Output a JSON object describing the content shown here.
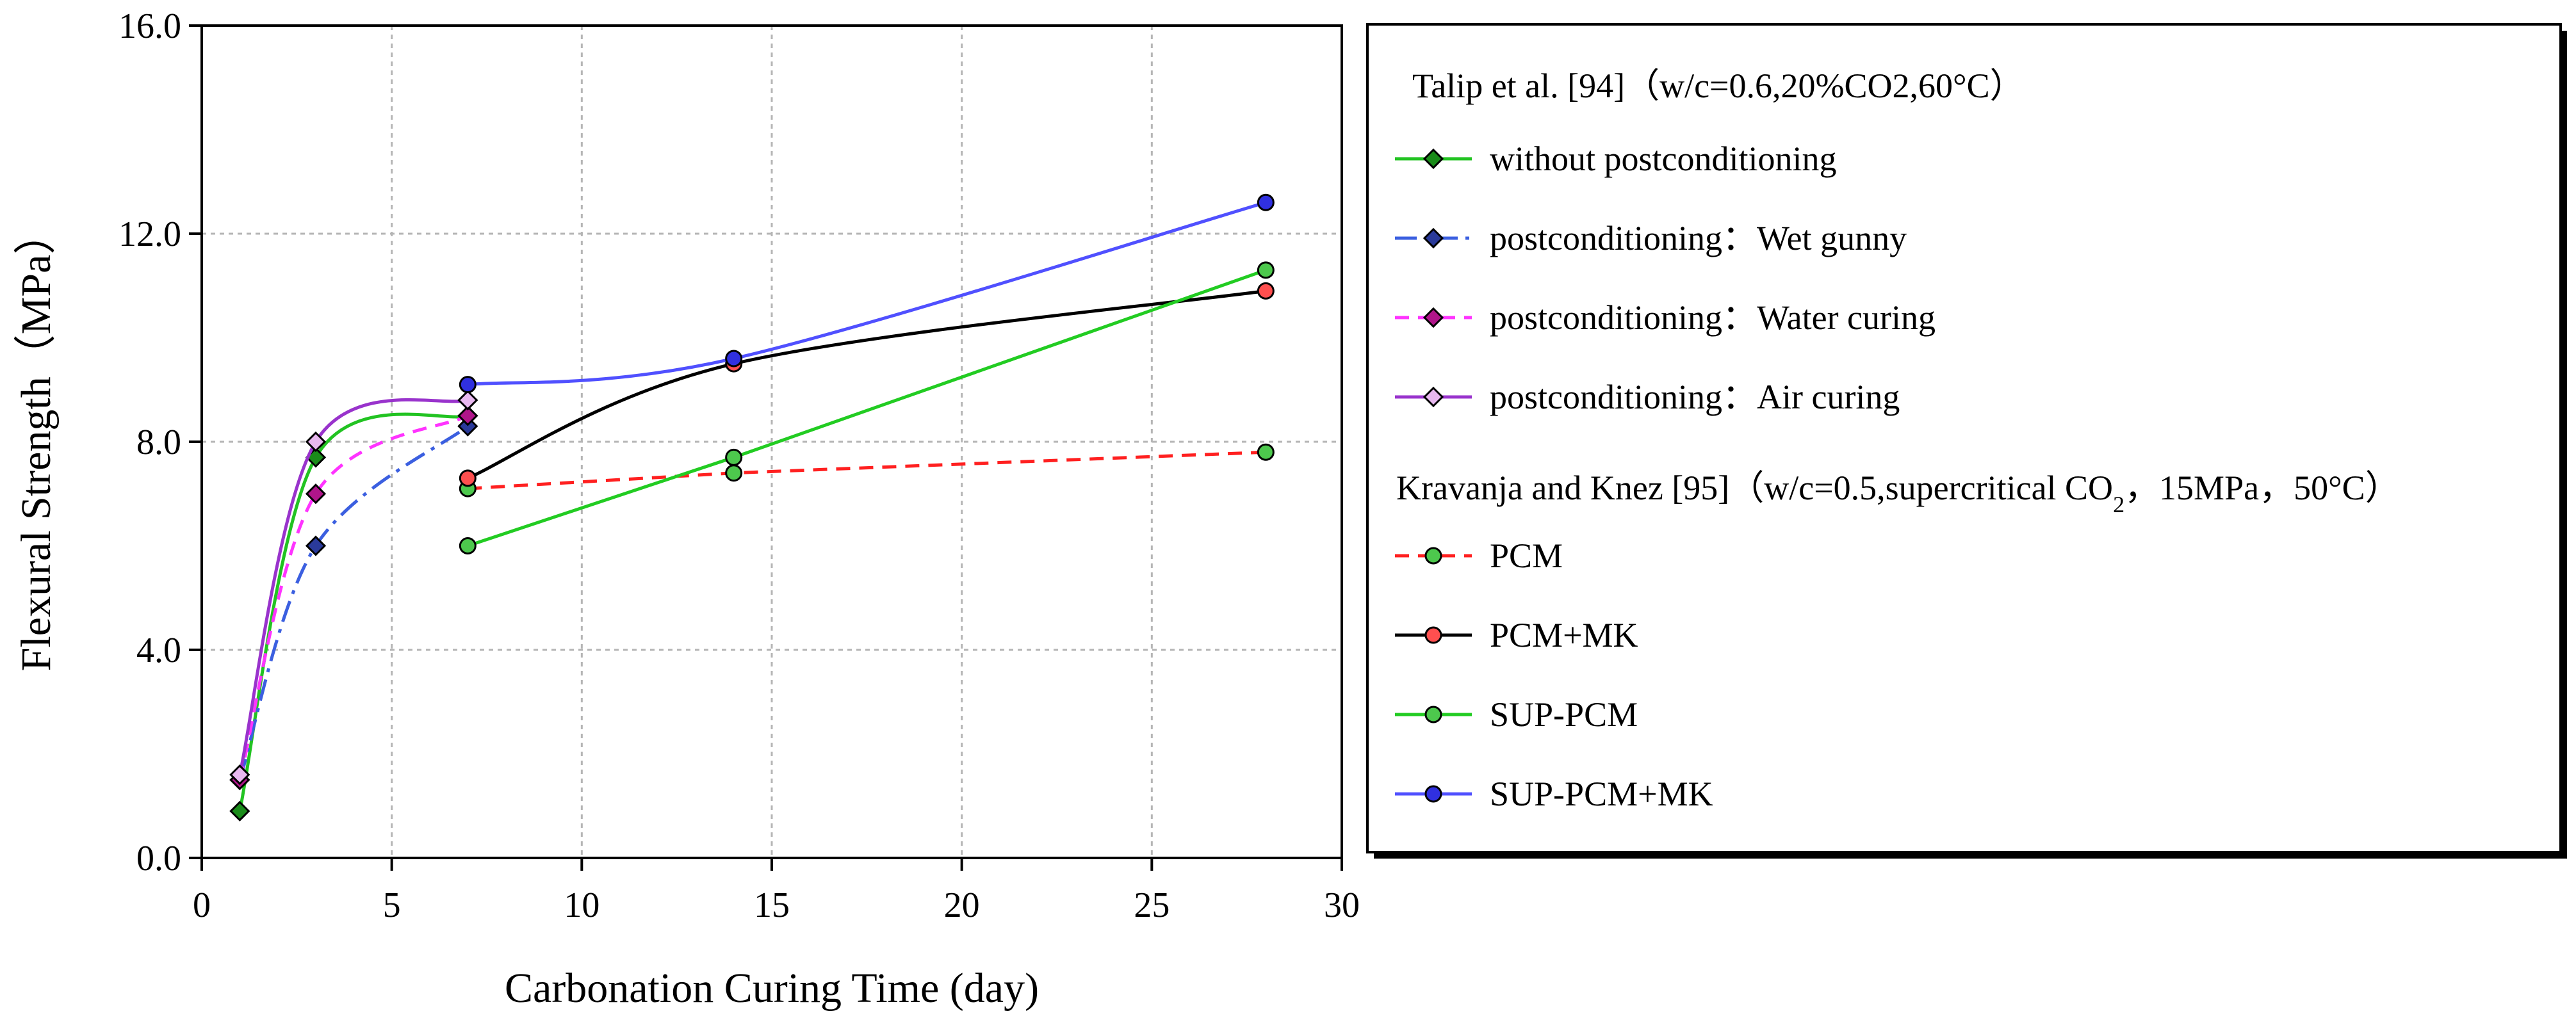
{
  "chart_data": {
    "type": "line",
    "title": "",
    "xlabel": "Carbonation Curing Time (day)",
    "ylabel": "Flexural Strength（MPa）",
    "xlim": [
      0,
      30
    ],
    "ylim": [
      0,
      16
    ],
    "xticks": [
      0,
      5,
      10,
      15,
      20,
      25,
      30
    ],
    "yticks": [
      0,
      4,
      8,
      12,
      16
    ],
    "xtick_labels": [
      "0",
      "5",
      "10",
      "15",
      "20",
      "25",
      "30"
    ],
    "ytick_labels": [
      "0.0",
      "4.0",
      "8.0",
      "12.0",
      "16.0"
    ],
    "grid": true,
    "legend_position": "right",
    "legend_groups": [
      {
        "title": "Talip et al. [94]（w/c=0.6,20%CO2,60°C）"
      },
      {
        "title_pre": "Kravanja and Knez [95]（w/c=0.5,supercritical CO",
        "title_sub": "2",
        "title_post": "，15MPa，50°C）"
      }
    ],
    "series": [
      {
        "name": "without postconditioning",
        "group": 0,
        "x": [
          1,
          3,
          7
        ],
        "y": [
          0.9,
          7.7,
          8.5
        ],
        "line_color": "#22c322",
        "marker_fill": "#1a8c1a",
        "marker": "diamond",
        "dash": "solid",
        "smooth": true
      },
      {
        "name": "postconditioning：Wet gunny",
        "group": 0,
        "x": [
          1,
          3,
          7
        ],
        "y": [
          1.5,
          6.0,
          8.3
        ],
        "line_color": "#3b5fe0",
        "marker_fill": "#2a3a9a",
        "marker": "diamond",
        "dash": "dashdot",
        "smooth": true
      },
      {
        "name": "postconditioning：Water curing",
        "group": 0,
        "x": [
          1,
          3,
          7
        ],
        "y": [
          1.5,
          7.0,
          8.5
        ],
        "line_color": "#ff33ff",
        "marker_fill": "#b0158a",
        "marker": "diamond",
        "dash": "dashed",
        "smooth": true
      },
      {
        "name": "postconditioning：Air curing",
        "group": 0,
        "x": [
          1,
          3,
          7
        ],
        "y": [
          1.6,
          8.0,
          8.8
        ],
        "line_color": "#9933cc",
        "marker_fill": "#e8b8ef",
        "marker": "diamond",
        "dash": "solid",
        "smooth": true
      },
      {
        "name": "PCM",
        "group": 1,
        "x": [
          7,
          14,
          28
        ],
        "y": [
          7.1,
          7.4,
          7.8
        ],
        "line_color": "#ff2020",
        "marker_fill": "#4dc84d",
        "marker": "circle",
        "dash": "dashed",
        "smooth": false
      },
      {
        "name": "PCM+MK",
        "group": 1,
        "x": [
          7,
          14,
          28
        ],
        "y": [
          7.3,
          9.5,
          10.9
        ],
        "line_color": "#000000",
        "marker_fill": "#ff4f4f",
        "marker": "circle",
        "dash": "solid",
        "smooth": true
      },
      {
        "name": "SUP-PCM",
        "group": 1,
        "x": [
          7,
          14,
          28
        ],
        "y": [
          6.0,
          7.7,
          11.3
        ],
        "line_color": "#22cc22",
        "marker_fill": "#4dc84d",
        "marker": "circle",
        "dash": "solid",
        "smooth": false
      },
      {
        "name": "SUP-PCM+MK",
        "group": 1,
        "x": [
          7,
          14,
          28
        ],
        "y": [
          9.1,
          9.6,
          12.6
        ],
        "line_color": "#5050ff",
        "marker_fill": "#3030e0",
        "marker": "circle",
        "dash": "solid",
        "smooth": true
      }
    ]
  }
}
